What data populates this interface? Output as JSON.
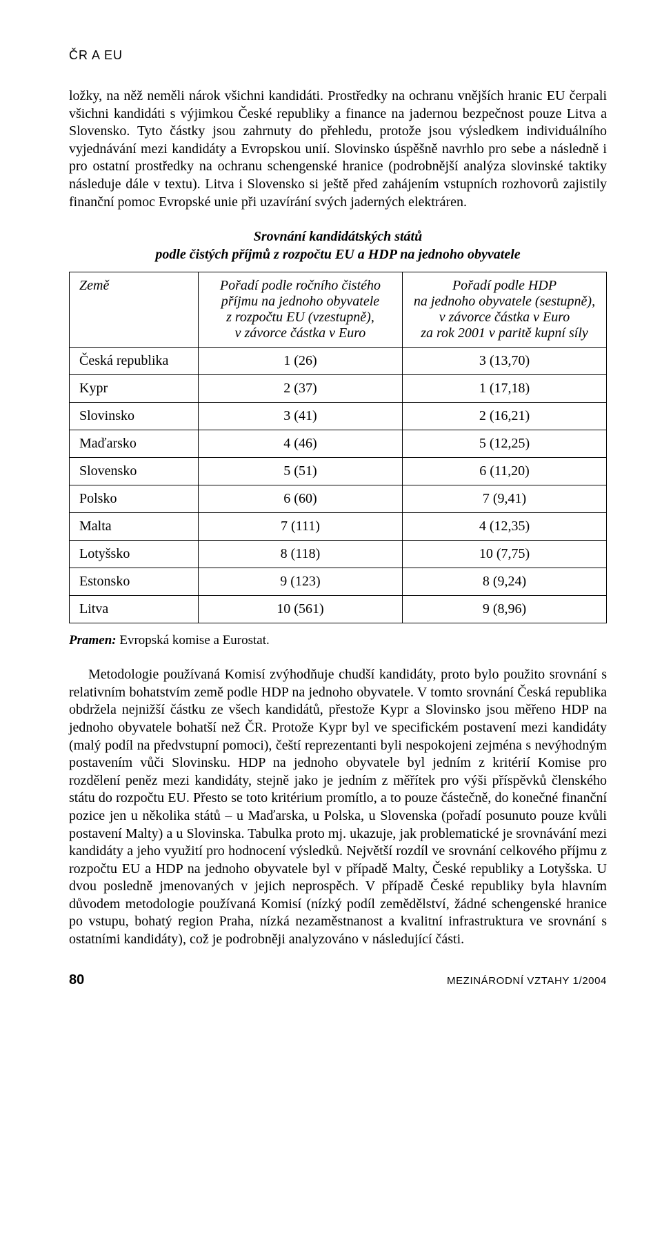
{
  "header": {
    "section": "ČR A EU"
  },
  "paragraphs": {
    "p1": "ložky, na něž neměli nárok všichni kandidáti. Prostředky na ochranu vnějších hranic EU čerpali všichni kandidáti s výjimkou České republiky a finance na jadernou bezpečnost pouze Litva a Slovensko. Tyto částky jsou zahrnuty do přehledu, protože jsou výsledkem individuálního vyjednávání mezi kandidáty a Evropskou unií. Slovinsko úspěšně navrhlo pro sebe a následně i pro ostatní prostředky na ochranu schengenské hranice (podrobnější analýza slovinské taktiky následuje dále v textu). Litva i Slovensko si ještě před zahájením vstupních rozhovorů zajistily finanční pomoc Evropské unie při uzavírání svých jaderných elektráren.",
    "p2": "Metodologie používaná Komisí zvýhodňuje chudší kandidáty, proto bylo použito srovnání s relativním bohatstvím země podle HDP na jednoho obyvatele. V tomto srovnání Česká republika obdržela nejnižší částku ze všech kandidátů, přestože Kypr a Slovinsko jsou měřeno HDP na jednoho obyvatele bohatší než ČR. Protože Kypr byl ve specifickém postavení mezi kandidáty (malý podíl na předvstupní pomoci), čeští reprezentanti byli nespokojeni zejména s nevýhodným postavením vůči Slovinsku. HDP na jednoho obyvatele byl jedním z kritérií Komise pro rozdělení peněz mezi kandidáty, stejně jako je jedním z měřítek pro výši příspěvků členského státu do rozpočtu EU. Přesto se toto kritérium promítlo, a to pouze částečně, do konečné finanční pozice jen u několika států – u Maďarska, u Polska, u Slovenska (pořadí posunuto pouze kvůli postavení Malty) a u Slovinska. Tabulka proto mj. ukazuje, jak problematické je srovnávání mezi kandidáty a jeho využití pro hodnocení výsledků. Největší rozdíl ve srovnání celkového příjmu z rozpočtu EU a HDP na jednoho obyvatele byl v případě Malty, České republiky a Lotyšska. U dvou posledně jmenovaných v jejich neprospěch. V případě České republiky byla hlavním důvodem metodologie používaná Komisí (nízký podíl zemědělství, žádné schengenské hranice po vstupu, bohatý region Praha, nízká nezaměstnanost a kvalitní infrastruktura ve srovnání s ostatními kandidáty), což je podrobněji analyzováno v následující části."
  },
  "table": {
    "type": "table",
    "title_line1": "Srovnání kandidátských států",
    "title_line2": "podle čistých příjmů z rozpočtu EU a HDP na jednoho obyvatele",
    "columns": {
      "country": "Země",
      "col1_l1": "Pořadí podle ročního čistého",
      "col1_l2": "příjmu na jednoho obyvatele",
      "col1_l3": "z rozpočtu EU (vzestupně),",
      "col1_l4": "v závorce částka v Euro",
      "col2_l1": "Pořadí podle HDP",
      "col2_l2": "na jednoho obyvatele (sestupně),",
      "col2_l3": "v závorce částka v Euro",
      "col2_l4": "za rok 2001 v paritě kupní síly"
    },
    "rows": [
      {
        "country": "Česká republika",
        "v1": "1 (26)",
        "v2": "3 (13,70)"
      },
      {
        "country": "Kypr",
        "v1": "2 (37)",
        "v2": "1 (17,18)"
      },
      {
        "country": "Slovinsko",
        "v1": "3 (41)",
        "v2": "2 (16,21)"
      },
      {
        "country": "Maďarsko",
        "v1": "4 (46)",
        "v2": "5 (12,25)"
      },
      {
        "country": "Slovensko",
        "v1": "5 (51)",
        "v2": "6 (11,20)"
      },
      {
        "country": "Polsko",
        "v1": "6 (60)",
        "v2": "7 (9,41)"
      },
      {
        "country": "Malta",
        "v1": "7 (111)",
        "v2": "4 (12,35)"
      },
      {
        "country": "Lotyšsko",
        "v1": "8 (118)",
        "v2": "10 (7,75)"
      },
      {
        "country": "Estonsko",
        "v1": "9 (123)",
        "v2": "8 (9,24)"
      },
      {
        "country": "Litva",
        "v1": "10 (561)",
        "v2": "9 (8,96)"
      }
    ],
    "col_widths": [
      "24%",
      "38%",
      "38%"
    ],
    "border_color": "#000000",
    "background_color": "#ffffff",
    "font_size_pt": 15
  },
  "source": {
    "label": "Pramen:",
    "text": " Evropská komise a Eurostat."
  },
  "footer": {
    "page": "80",
    "journal": "MEZINÁRODNÍ VZTAHY 1/2004"
  }
}
